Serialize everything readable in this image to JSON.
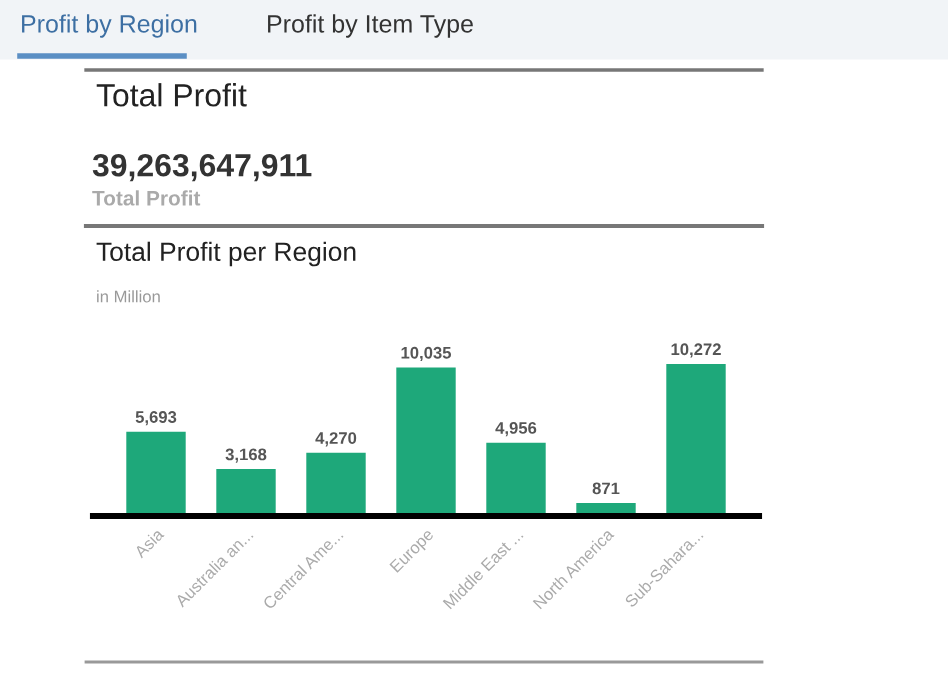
{
  "chart_data": {
    "type": "bar",
    "title": "Total Profit per Region",
    "subtitle": "in Million",
    "annotations": [
      "Profit by Region",
      "Profit by Item Type",
      "Total Profit",
      "39,263,647,911",
      "Total Profit"
    ],
    "categories": [
      "Asia",
      "Australia an...",
      "Central Ame...",
      "Europe",
      "Middle East ...",
      "North America",
      "Sub-Sahara..."
    ],
    "values": [
      5693,
      3168,
      4270,
      10035,
      4956,
      871,
      10272
    ],
    "value_labels": [
      "5,693",
      "3,168",
      "4,270",
      "10,035",
      "4,956",
      "871",
      "10,272"
    ],
    "color": "#1ea87a",
    "grid": false,
    "legend": false
  }
}
